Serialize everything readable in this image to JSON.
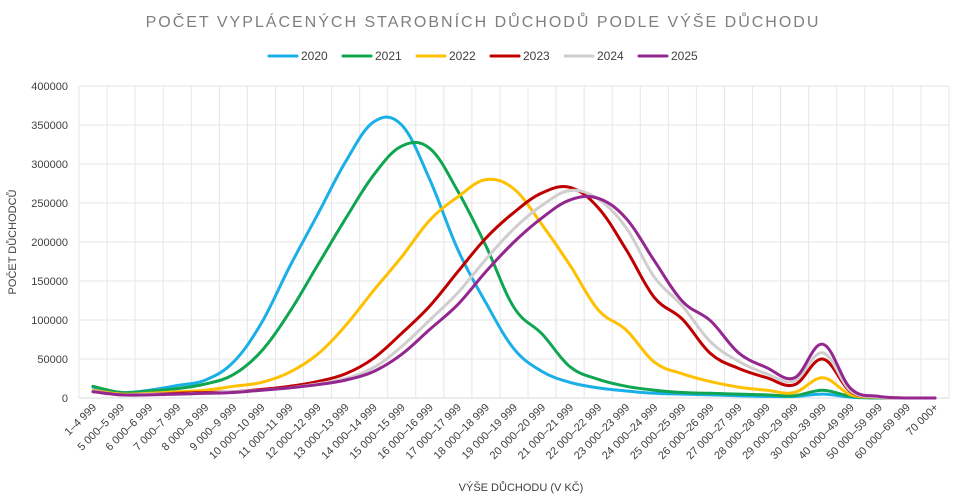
{
  "chart_data": {
    "type": "line",
    "title": "POČET VYPLÁCENÝCH STAROBNÍCH DŮCHODŮ PODLE VÝŠE DŮCHODU",
    "xlabel": "VÝŠE DŮCHODU (V KČ)",
    "ylabel": "POČET DŮCHODCŮ",
    "ylim": [
      0,
      400000
    ],
    "yticks": [
      "0",
      "50000",
      "100000",
      "150000",
      "200000",
      "250000",
      "300000",
      "350000",
      "400000"
    ],
    "grid": true,
    "legend_position": "top",
    "categories": [
      "1–4 999",
      "5 000–5 999",
      "6 000–6 999",
      "7 000–7 999",
      "8 000–8 999",
      "9 000–9 999",
      "10 000–10 999",
      "11 000–11 999",
      "12 000–12 999",
      "13 000–13 999",
      "14 000–14 999",
      "15 000–15 999",
      "16 000–16 999",
      "17 000–17 999",
      "18 000–18 999",
      "19 000–19 999",
      "20 000–20 999",
      "21 000–21 999",
      "22 000–22 999",
      "23 000–23 999",
      "24 000–24 999",
      "25 000–25 999",
      "26 000–26 999",
      "27 000–27 999",
      "28 000–28 999",
      "29 000–29 999",
      "30 000–39 999",
      "40 000–49 999",
      "50 000–59 999",
      "60 000–69 999",
      "70 000+"
    ],
    "series": [
      {
        "name": "2020",
        "color": "#1aafe6",
        "values": [
          14000,
          7000,
          10000,
          16000,
          23000,
          46000,
          96000,
          168000,
          235000,
          303000,
          354000,
          350000,
          280000,
          190000,
          122000,
          63000,
          34000,
          20000,
          13000,
          9000,
          6000,
          5000,
          4000,
          3000,
          2000,
          2000,
          5000,
          1000,
          0,
          0,
          0
        ]
      },
      {
        "name": "2021",
        "color": "#10a651",
        "values": [
          15000,
          7000,
          9000,
          12000,
          18000,
          30000,
          60000,
          110000,
          170000,
          230000,
          286000,
          323000,
          320000,
          265000,
          195000,
          116000,
          82000,
          40000,
          24000,
          15000,
          10000,
          7000,
          6000,
          5000,
          4000,
          3000,
          10000,
          2000,
          0,
          0,
          0
        ]
      },
      {
        "name": "2022",
        "color": "#ffc000",
        "values": [
          10000,
          5000,
          6000,
          8000,
          10000,
          15000,
          20000,
          33000,
          56000,
          93000,
          138000,
          181000,
          228000,
          258000,
          280000,
          268000,
          222000,
          170000,
          113000,
          87000,
          46000,
          31000,
          21000,
          14000,
          10000,
          7000,
          26000,
          4000,
          1000,
          0,
          0
        ]
      },
      {
        "name": "2023",
        "color": "#c00000",
        "values": [
          9000,
          4000,
          5000,
          6000,
          7000,
          8000,
          11000,
          15000,
          21000,
          31000,
          51000,
          83000,
          118000,
          162000,
          205000,
          238000,
          263000,
          270000,
          244000,
          190000,
          129000,
          101000,
          57000,
          38000,
          26000,
          17000,
          50000,
          8000,
          1000,
          0,
          0
        ]
      },
      {
        "name": "2024",
        "color": "#d0cece",
        "values": [
          9000,
          4000,
          5000,
          5000,
          6000,
          8000,
          10000,
          13000,
          18000,
          25000,
          39000,
          66000,
          100000,
          135000,
          178000,
          217000,
          247000,
          266000,
          255000,
          218000,
          155000,
          118000,
          72000,
          47000,
          31000,
          22000,
          58000,
          9000,
          1000,
          0,
          0
        ]
      },
      {
        "name": "2025",
        "color": "#93278f",
        "values": [
          8000,
          4000,
          4000,
          5000,
          6000,
          7000,
          10000,
          13000,
          17000,
          23000,
          34000,
          56000,
          88000,
          120000,
          162000,
          200000,
          231000,
          254000,
          256000,
          230000,
          176000,
          124000,
          99000,
          58000,
          39000,
          26000,
          69000,
          12000,
          2000,
          0,
          0
        ]
      }
    ]
  }
}
